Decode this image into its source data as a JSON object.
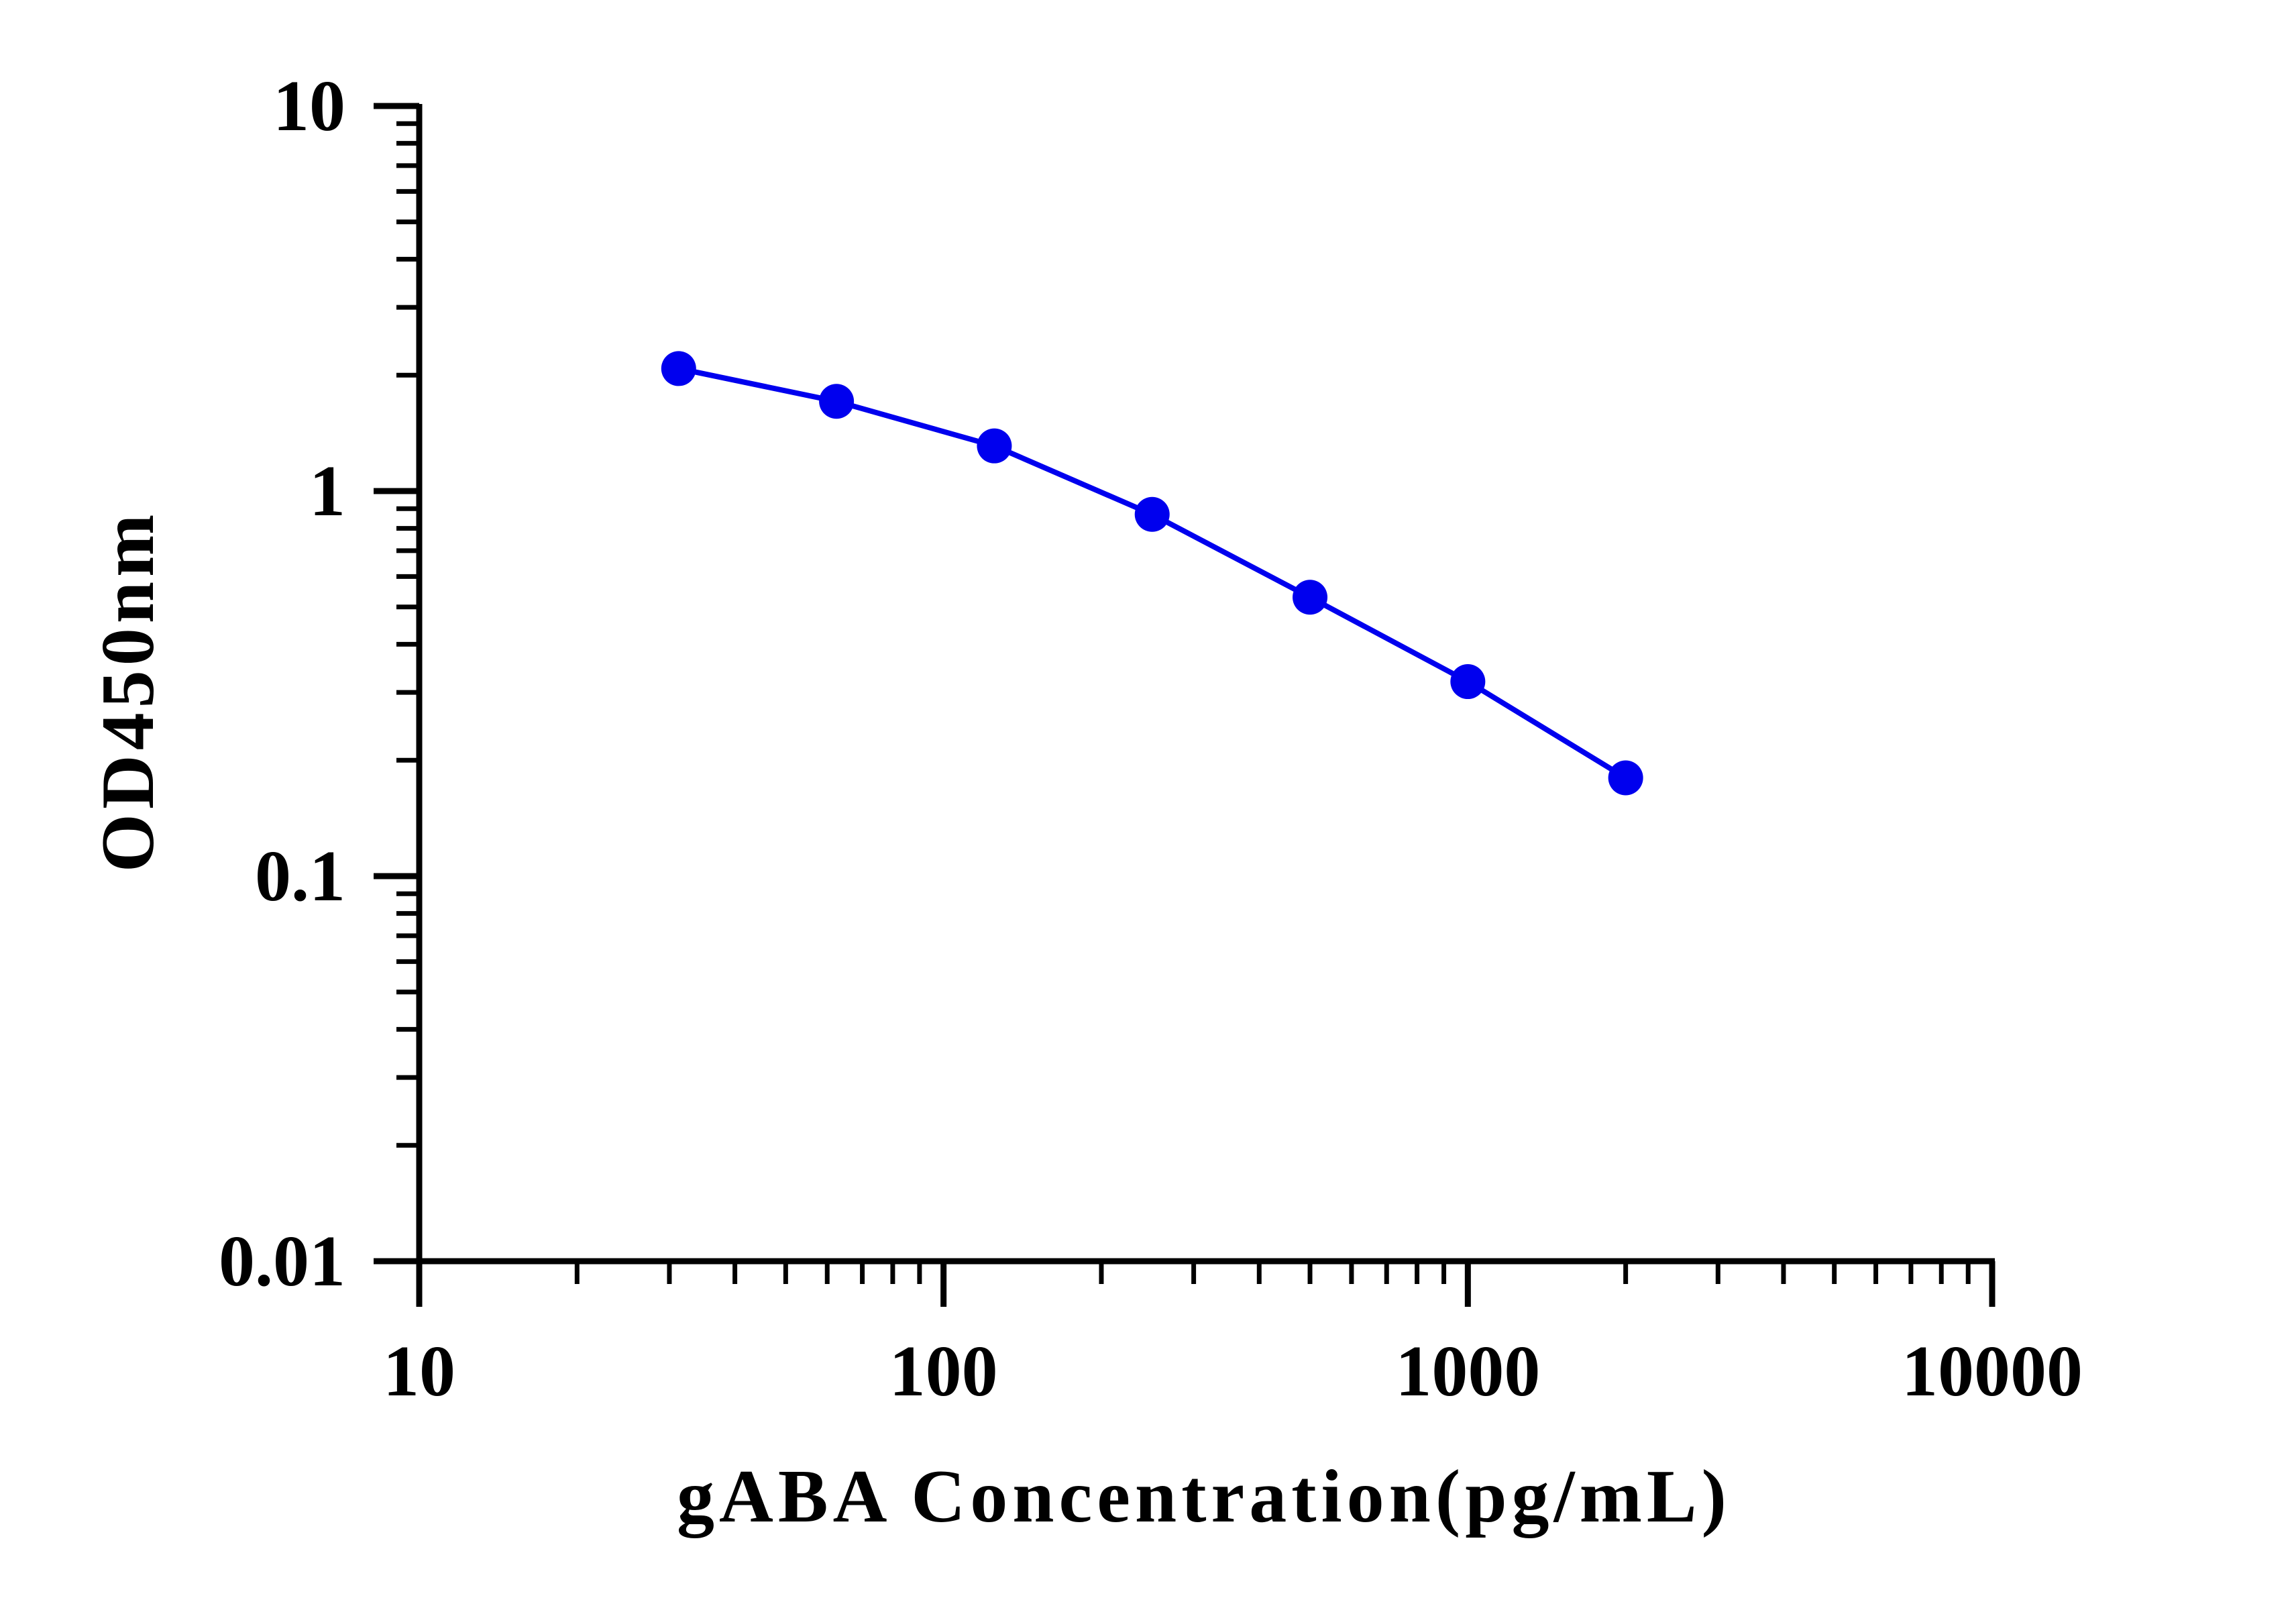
{
  "chart_data": {
    "type": "line",
    "title": "",
    "xlabel": "gABA Concentration(pg/mL)",
    "ylabel": "OD450nm",
    "xscale": "log",
    "yscale": "log",
    "xlim": [
      10,
      10000
    ],
    "ylim": [
      0.01,
      10
    ],
    "x_ticks": [
      "10",
      "100",
      "1000",
      "10000"
    ],
    "y_ticks": [
      "0.01",
      "0.1",
      "1",
      "10"
    ],
    "grid": false,
    "legend": "none",
    "series": [
      {
        "color": "#0000ee",
        "x": [
          31.25,
          62.5,
          125,
          250,
          500,
          1000,
          2000
        ],
        "y": [
          2.08,
          1.71,
          1.31,
          0.87,
          0.53,
          0.32,
          0.18
        ]
      }
    ]
  }
}
